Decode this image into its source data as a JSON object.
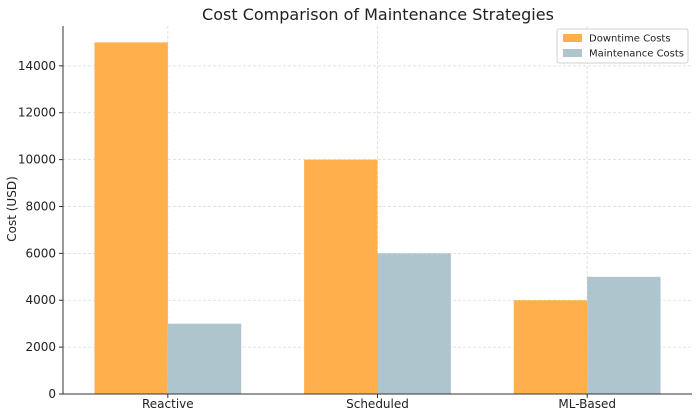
{
  "chart_data": {
    "type": "bar",
    "title": "Cost Comparison of Maintenance Strategies",
    "xlabel": "",
    "ylabel": "Cost (USD)",
    "categories": [
      "Reactive",
      "Scheduled",
      "ML-Based"
    ],
    "series": [
      {
        "name": "Downtime Costs",
        "values": [
          15000,
          10000,
          4000
        ],
        "color": "#ffb04d"
      },
      {
        "name": "Maintenance Costs",
        "values": [
          3000,
          6000,
          5000
        ],
        "color": "#aec5cd"
      }
    ],
    "ylim": [
      0,
      15700
    ],
    "yticks": [
      0,
      2000,
      4000,
      6000,
      8000,
      10000,
      12000,
      14000
    ],
    "grid": true,
    "legend_position": "top-right"
  }
}
